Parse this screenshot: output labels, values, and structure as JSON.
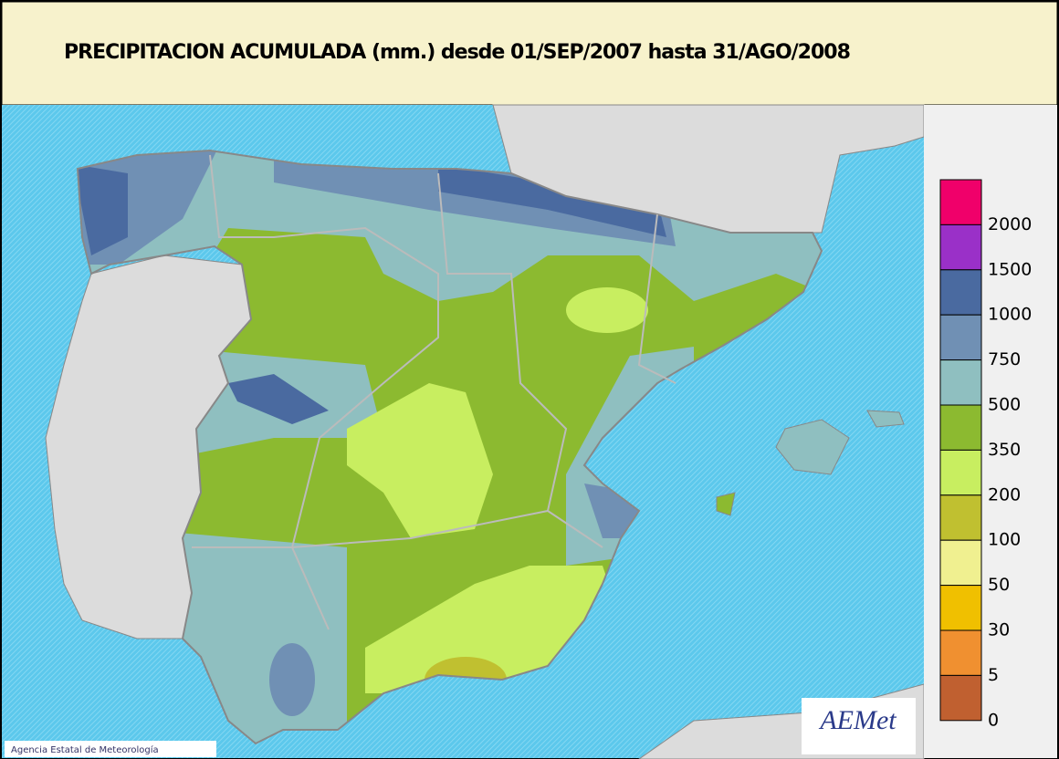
{
  "header": {
    "title": "PRECIPITACION ACUMULADA (mm.) desde 01/SEP/2007 hasta 31/AGO/2008"
  },
  "legend": {
    "items": [
      {
        "value": 2000,
        "color": "#f0006a"
      },
      {
        "value": 1500,
        "color": "#9a30c8"
      },
      {
        "value": 1000,
        "color": "#4a6aa0"
      },
      {
        "value": 750,
        "color": "#7090b4"
      },
      {
        "value": 500,
        "color": "#8fbfc0"
      },
      {
        "value": 350,
        "color": "#8cba30"
      },
      {
        "value": 200,
        "color": "#c8ee60"
      },
      {
        "value": 100,
        "color": "#c0c030"
      },
      {
        "value": 50,
        "color": "#f0f090"
      },
      {
        "value": 30,
        "color": "#f0c000"
      },
      {
        "value": 5,
        "color": "#f09030"
      },
      {
        "value": 0,
        "color": "#c06030"
      }
    ]
  },
  "footer": {
    "credit": "Agencia Estatal de Meteorología",
    "logo": "AEMet"
  }
}
